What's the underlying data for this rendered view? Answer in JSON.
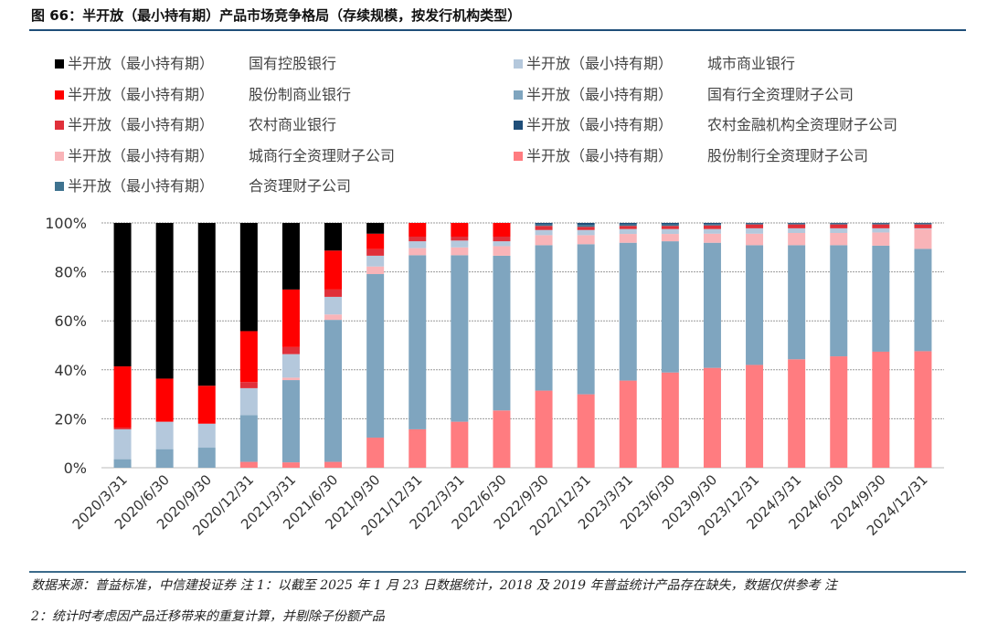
{
  "title": "图 66：半开放（最小持有期）产品市场竞争格局（存续规模，按发行机构类型）",
  "footer": {
    "line1": "数据来源：普益标准，中信建投证券  注 1：以截至 2025 年 1 月 23 日数据统计，2018 及 2019 年普益统计产品存在缺失，数据仅供参考  注",
    "line2": "2：统计时考虑因产品迁移带来的重复计算，并剔除子份额产品"
  },
  "chart_data": {
    "type": "bar",
    "stacked": true,
    "percent": true,
    "title": "",
    "xlabel": "",
    "ylabel": "",
    "ylim": [
      0,
      100
    ],
    "yticks": [
      "0%",
      "20%",
      "40%",
      "60%",
      "80%",
      "100%"
    ],
    "grid": true,
    "legend_position": "top",
    "categories": [
      "2020/3/31",
      "2020/6/30",
      "2020/9/30",
      "2020/12/31",
      "2021/3/31",
      "2021/6/30",
      "2021/9/30",
      "2021/12/31",
      "2022/3/31",
      "2022/6/30",
      "2022/9/30",
      "2022/12/31",
      "2023/3/31",
      "2023/6/30",
      "2023/9/30",
      "2023/12/31",
      "2024/3/31",
      "2024/6/30",
      "2024/9/30",
      "2024/12/31"
    ],
    "legend_prefix": "半开放（最小持有期）",
    "legend_order": [
      0,
      7,
      1,
      8,
      2,
      5,
      3,
      4,
      6
    ],
    "series": [
      {
        "name": "国有控股银行",
        "color": "#000000",
        "values": [
          58.6,
          63.6,
          66.5,
          44.2,
          27.2,
          11.3,
          4.4,
          0,
          0,
          0,
          0,
          0,
          0,
          0,
          0,
          0,
          0,
          0,
          0,
          0
        ]
      },
      {
        "name": "股份制商业银行",
        "color": "#FF0000",
        "values": [
          25.0,
          17.6,
          15.5,
          20.8,
          23.5,
          15.9,
          6.3,
          5.6,
          5.6,
          5.6,
          0,
          0,
          0,
          0,
          0,
          0,
          0,
          0,
          0,
          0
        ]
      },
      {
        "name": "农村商业银行",
        "color": "#E0303A",
        "values": [
          0.7,
          0,
          0,
          2.5,
          2.9,
          3.0,
          2.7,
          1.9,
          1.6,
          1.9,
          1.7,
          1.3,
          1.3,
          1.3,
          1.5,
          1.6,
          1.6,
          1.6,
          1.6,
          1.6
        ]
      },
      {
        "name": "城商行全资理财子公司",
        "color": "#F9B4B8",
        "values": [
          0,
          0,
          0,
          0,
          1.0,
          2.2,
          3.1,
          2.9,
          3.2,
          3.9,
          4.1,
          3.7,
          3.6,
          3.0,
          3.7,
          4.7,
          5.0,
          5.0,
          5.4,
          8.1
        ]
      },
      {
        "name": "股份制行全资理财子公司",
        "color": "#FF7C80",
        "values": [
          0,
          0,
          0,
          2.4,
          2.2,
          2.4,
          12.3,
          15.7,
          18.8,
          23.4,
          31.5,
          30.0,
          35.6,
          38.9,
          40.8,
          42.0,
          44.3,
          45.5,
          47.4,
          47.6
        ]
      },
      {
        "name": "农村金融机构全资理财子公司",
        "color": "#1F4E79",
        "values": [
          0,
          0,
          0,
          0,
          0,
          0,
          0,
          0,
          0,
          0,
          0.6,
          0.8,
          0.6,
          0.6,
          0.5,
          0.3,
          0.3,
          0.3,
          0.3,
          0.3
        ]
      },
      {
        "name": "合资理财子公司",
        "color": "#3F7390",
        "values": [
          0,
          0,
          0,
          0,
          0,
          0,
          0,
          0,
          0,
          0,
          0.6,
          0.8,
          0.6,
          0.6,
          0.5,
          0.3,
          0.3,
          0.3,
          0.3,
          0.3
        ]
      },
      {
        "name": "城市商业银行",
        "color": "#B4C8DC",
        "values": [
          12.2,
          11.2,
          9.8,
          11.0,
          9.6,
          7.2,
          4.4,
          2.8,
          2.8,
          2.0,
          2.1,
          2.1,
          2.0,
          2.0,
          1.9,
          2.2,
          1.9,
          1.9,
          1.7,
          0.3
        ]
      },
      {
        "name": "国有行全资理财子公司",
        "color": "#7FA5BF",
        "values": [
          3.5,
          7.6,
          8.2,
          19.1,
          33.6,
          58.0,
          66.8,
          71.1,
          68.0,
          63.2,
          59.4,
          61.3,
          56.3,
          53.6,
          51.1,
          48.9,
          46.6,
          45.4,
          43.3,
          41.8
        ]
      }
    ],
    "stack_order_bottom_to_top": [
      "股份制行全资理财子公司",
      "国有行全资理财子公司",
      "城商行全资理财子公司",
      "城市商业银行",
      "农村商业银行",
      "股份制商业银行",
      "国有控股银行",
      "合资理财子公司",
      "农村金融机构全资理财子公司"
    ]
  }
}
